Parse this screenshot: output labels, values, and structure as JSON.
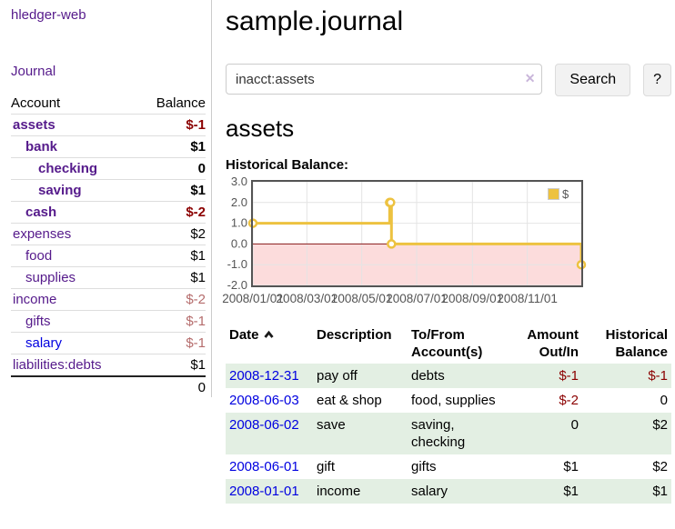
{
  "app": {
    "title": "hledger-web"
  },
  "colors": {
    "link_purple": "#551a8b",
    "link_blue": "#0000e0",
    "negative_red": "#8b0000",
    "negative_rose": "#b56c6c",
    "row_green": "#e3efe3"
  },
  "sidebar": {
    "nav_journal": "Journal",
    "headers": {
      "account": "Account",
      "balance": "Balance"
    },
    "accounts": [
      {
        "name": "assets",
        "balance": "$-1"
      },
      {
        "name": "bank",
        "balance": "$1"
      },
      {
        "name": "checking",
        "balance": "0"
      },
      {
        "name": "saving",
        "balance": "$1"
      },
      {
        "name": "cash",
        "balance": "$-2"
      },
      {
        "name": "expenses",
        "balance": "$2"
      },
      {
        "name": "food",
        "balance": "$1"
      },
      {
        "name": "supplies",
        "balance": "$1"
      },
      {
        "name": "income",
        "balance": "$-2"
      },
      {
        "name": "gifts",
        "balance": "$-1"
      },
      {
        "name": "salary",
        "balance": "$-1"
      },
      {
        "name": "liabilities:debts",
        "balance": "$1"
      }
    ],
    "total": "0"
  },
  "header": {
    "title": "sample.journal"
  },
  "search": {
    "value": "inacct:assets",
    "clear_icon": "✕",
    "button_label": "Search",
    "help_label": "?"
  },
  "account_page": {
    "title": "assets",
    "chart_heading": "Historical Balance:"
  },
  "chart_data": {
    "type": "line",
    "step": true,
    "title": "Historical Balance:",
    "series": [
      {
        "name": "$",
        "color": "#edc240",
        "points": [
          [
            "2008-01-01",
            1
          ],
          [
            "2008-06-01",
            2
          ],
          [
            "2008-06-02",
            2
          ],
          [
            "2008-06-03",
            0
          ],
          [
            "2008-12-31",
            -1
          ]
        ]
      }
    ],
    "xlim": [
      "2008-01-01",
      "2008-12-31"
    ],
    "ylim": [
      -2,
      3
    ],
    "x_ticks": [
      "2008/01/01",
      "2008/03/01",
      "2008/05/01",
      "2008/07/01",
      "2008/09/01",
      "2008/11/01"
    ],
    "y_ticks": [
      "3.0",
      "2.0",
      "1.0",
      "0.0",
      "-1.0",
      "-2.0"
    ],
    "legend_position": "top-right",
    "grid": true,
    "negative_region_color": "#fcdcdc",
    "zero_line_color": "#8b1a1a",
    "grid_color": "#e4e4e4",
    "border_color": "#545454",
    "tick_text_color": "#545454"
  },
  "register": {
    "headers": {
      "date": "Date",
      "description": "Description",
      "tofrom": "To/From Account(s)",
      "amount": "Amount Out/In",
      "balance": "Historical Balance"
    },
    "rows": [
      {
        "date": "2008-12-31",
        "description": "pay off",
        "accounts": "debts",
        "amount": "$-1",
        "balance": "$-1"
      },
      {
        "date": "2008-06-03",
        "description": "eat & shop",
        "accounts": "food, supplies",
        "amount": "$-2",
        "balance": "0"
      },
      {
        "date": "2008-06-02",
        "description": "save",
        "accounts": "saving, checking",
        "amount": "0",
        "balance": "$2"
      },
      {
        "date": "2008-06-01",
        "description": "gift",
        "accounts": "gifts",
        "amount": "$1",
        "balance": "$2"
      },
      {
        "date": "2008-01-01",
        "description": "income",
        "accounts": "salary",
        "amount": "$1",
        "balance": "$1"
      }
    ]
  }
}
